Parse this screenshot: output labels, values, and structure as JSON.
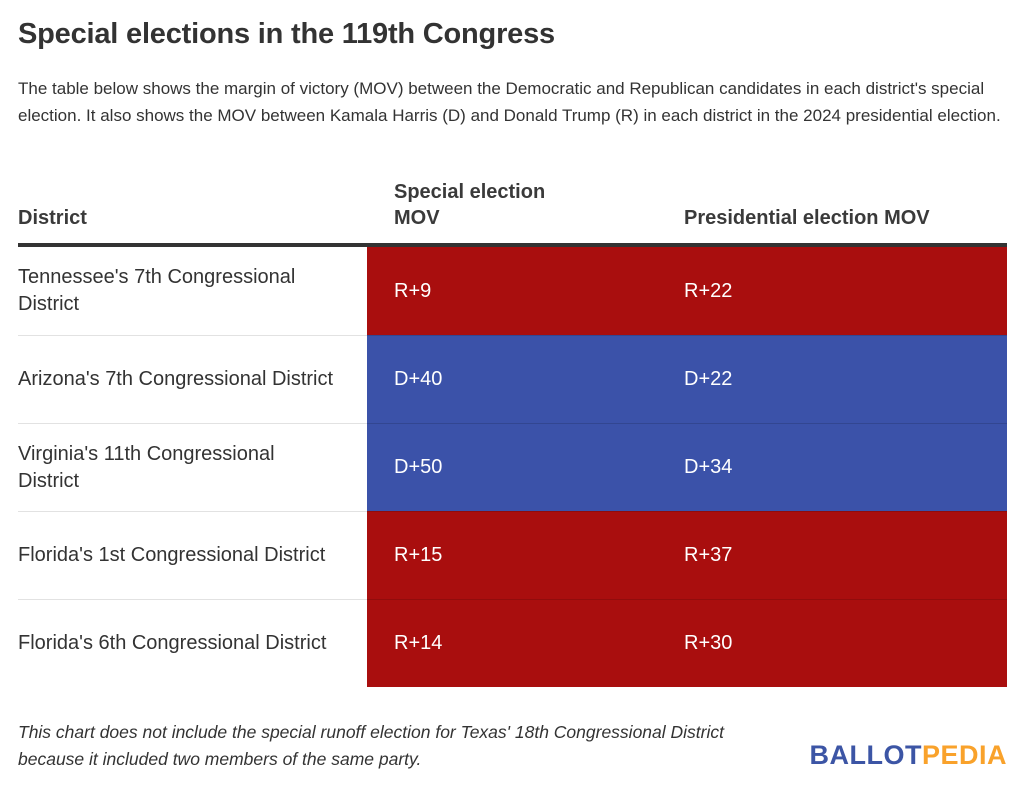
{
  "title": "Special elections in the 119th Congress",
  "subtitle": "The table below shows the margin of victory (MOV) between the Democratic and Republican candidates in each district's special election. It also shows the MOV between Kamala Harris (D) and Donald Trump (R) in each district in the 2024 presidential election.",
  "chart_data": {
    "type": "table",
    "title": "Special elections in the 119th Congress",
    "columns": [
      "District",
      "Special election MOV",
      "Presidential election MOV"
    ],
    "rows": [
      {
        "district": "Tennessee's 7th Congressional District",
        "special_mov": "R+9",
        "presidential_mov": "R+22",
        "party": "R"
      },
      {
        "district": "Arizona's 7th Congressional District",
        "special_mov": "D+40",
        "presidential_mov": "D+22",
        "party": "D"
      },
      {
        "district": "Virginia's 11th Congressional District",
        "special_mov": "D+50",
        "presidential_mov": "D+34",
        "party": "D"
      },
      {
        "district": "Florida's 1st Congressional District",
        "special_mov": "R+15",
        "presidential_mov": "R+37",
        "party": "R"
      },
      {
        "district": "Florida's 6th Congressional District",
        "special_mov": "R+14",
        "presidential_mov": "R+30",
        "party": "R"
      }
    ]
  },
  "footnote": "This chart does not include the special runoff election for Texas' 18th Congressional District because it included two members of the same party.",
  "logo": {
    "part1": "BALLOT",
    "part2": "PEDIA"
  },
  "colors": {
    "republican": "#A90E0E",
    "democratic": "#3B52A9",
    "header_rule": "#333333",
    "text": "#333333",
    "logo_blue": "#3C55A5",
    "logo_orange": "#F9A22B"
  }
}
